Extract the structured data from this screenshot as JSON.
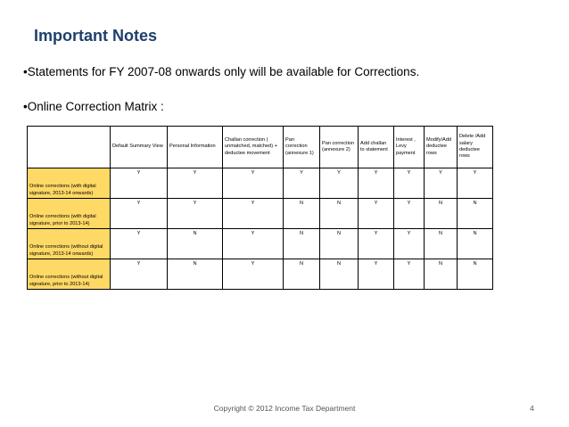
{
  "title": "Important Notes",
  "bullets": [
    "•Statements for FY 2007-08 onwards only will be available for Corrections.",
    "•Online Correction Matrix :"
  ],
  "matrix": {
    "columns": [
      "Default Summary View",
      "Personal Information",
      "Challan correction ( unmatched, matched) + deductee movement",
      "Pan correction (annexure 1)",
      "Pan correction (annexure 2)",
      "Add challan to statement",
      "Interest , Levy payment",
      "Modify/Add deductee rows",
      "Delete /Add salary deductee rows"
    ],
    "rows": [
      {
        "label": "Online corrections (with digital signature, 2013-14 onwards)",
        "values": [
          "Y",
          "Y",
          "Y",
          "Y",
          "Y",
          "Y",
          "Y",
          "Y",
          "Y"
        ]
      },
      {
        "label": "Online corrections (with digital signature, prior to 2013-14)",
        "values": [
          "Y",
          "Y",
          "Y",
          "N",
          "N",
          "Y",
          "Y",
          "N",
          "N"
        ]
      },
      {
        "label": "Online corrections (without digital signature, 2013-14 onwards)",
        "values": [
          "Y",
          "N",
          "Y",
          "N",
          "N",
          "Y",
          "Y",
          "N",
          "N"
        ]
      },
      {
        "label": "Online corrections (without digital signature, prior to 2013-14)",
        "values": [
          "Y",
          "N",
          "Y",
          "N",
          "N",
          "Y",
          "Y",
          "N",
          "N"
        ]
      }
    ]
  },
  "footer": "Copyright © 2012 Income Tax Department",
  "page_number": "4",
  "colors": {
    "title": "#1f3f6b",
    "row_header_fill": "#ffd966"
  }
}
